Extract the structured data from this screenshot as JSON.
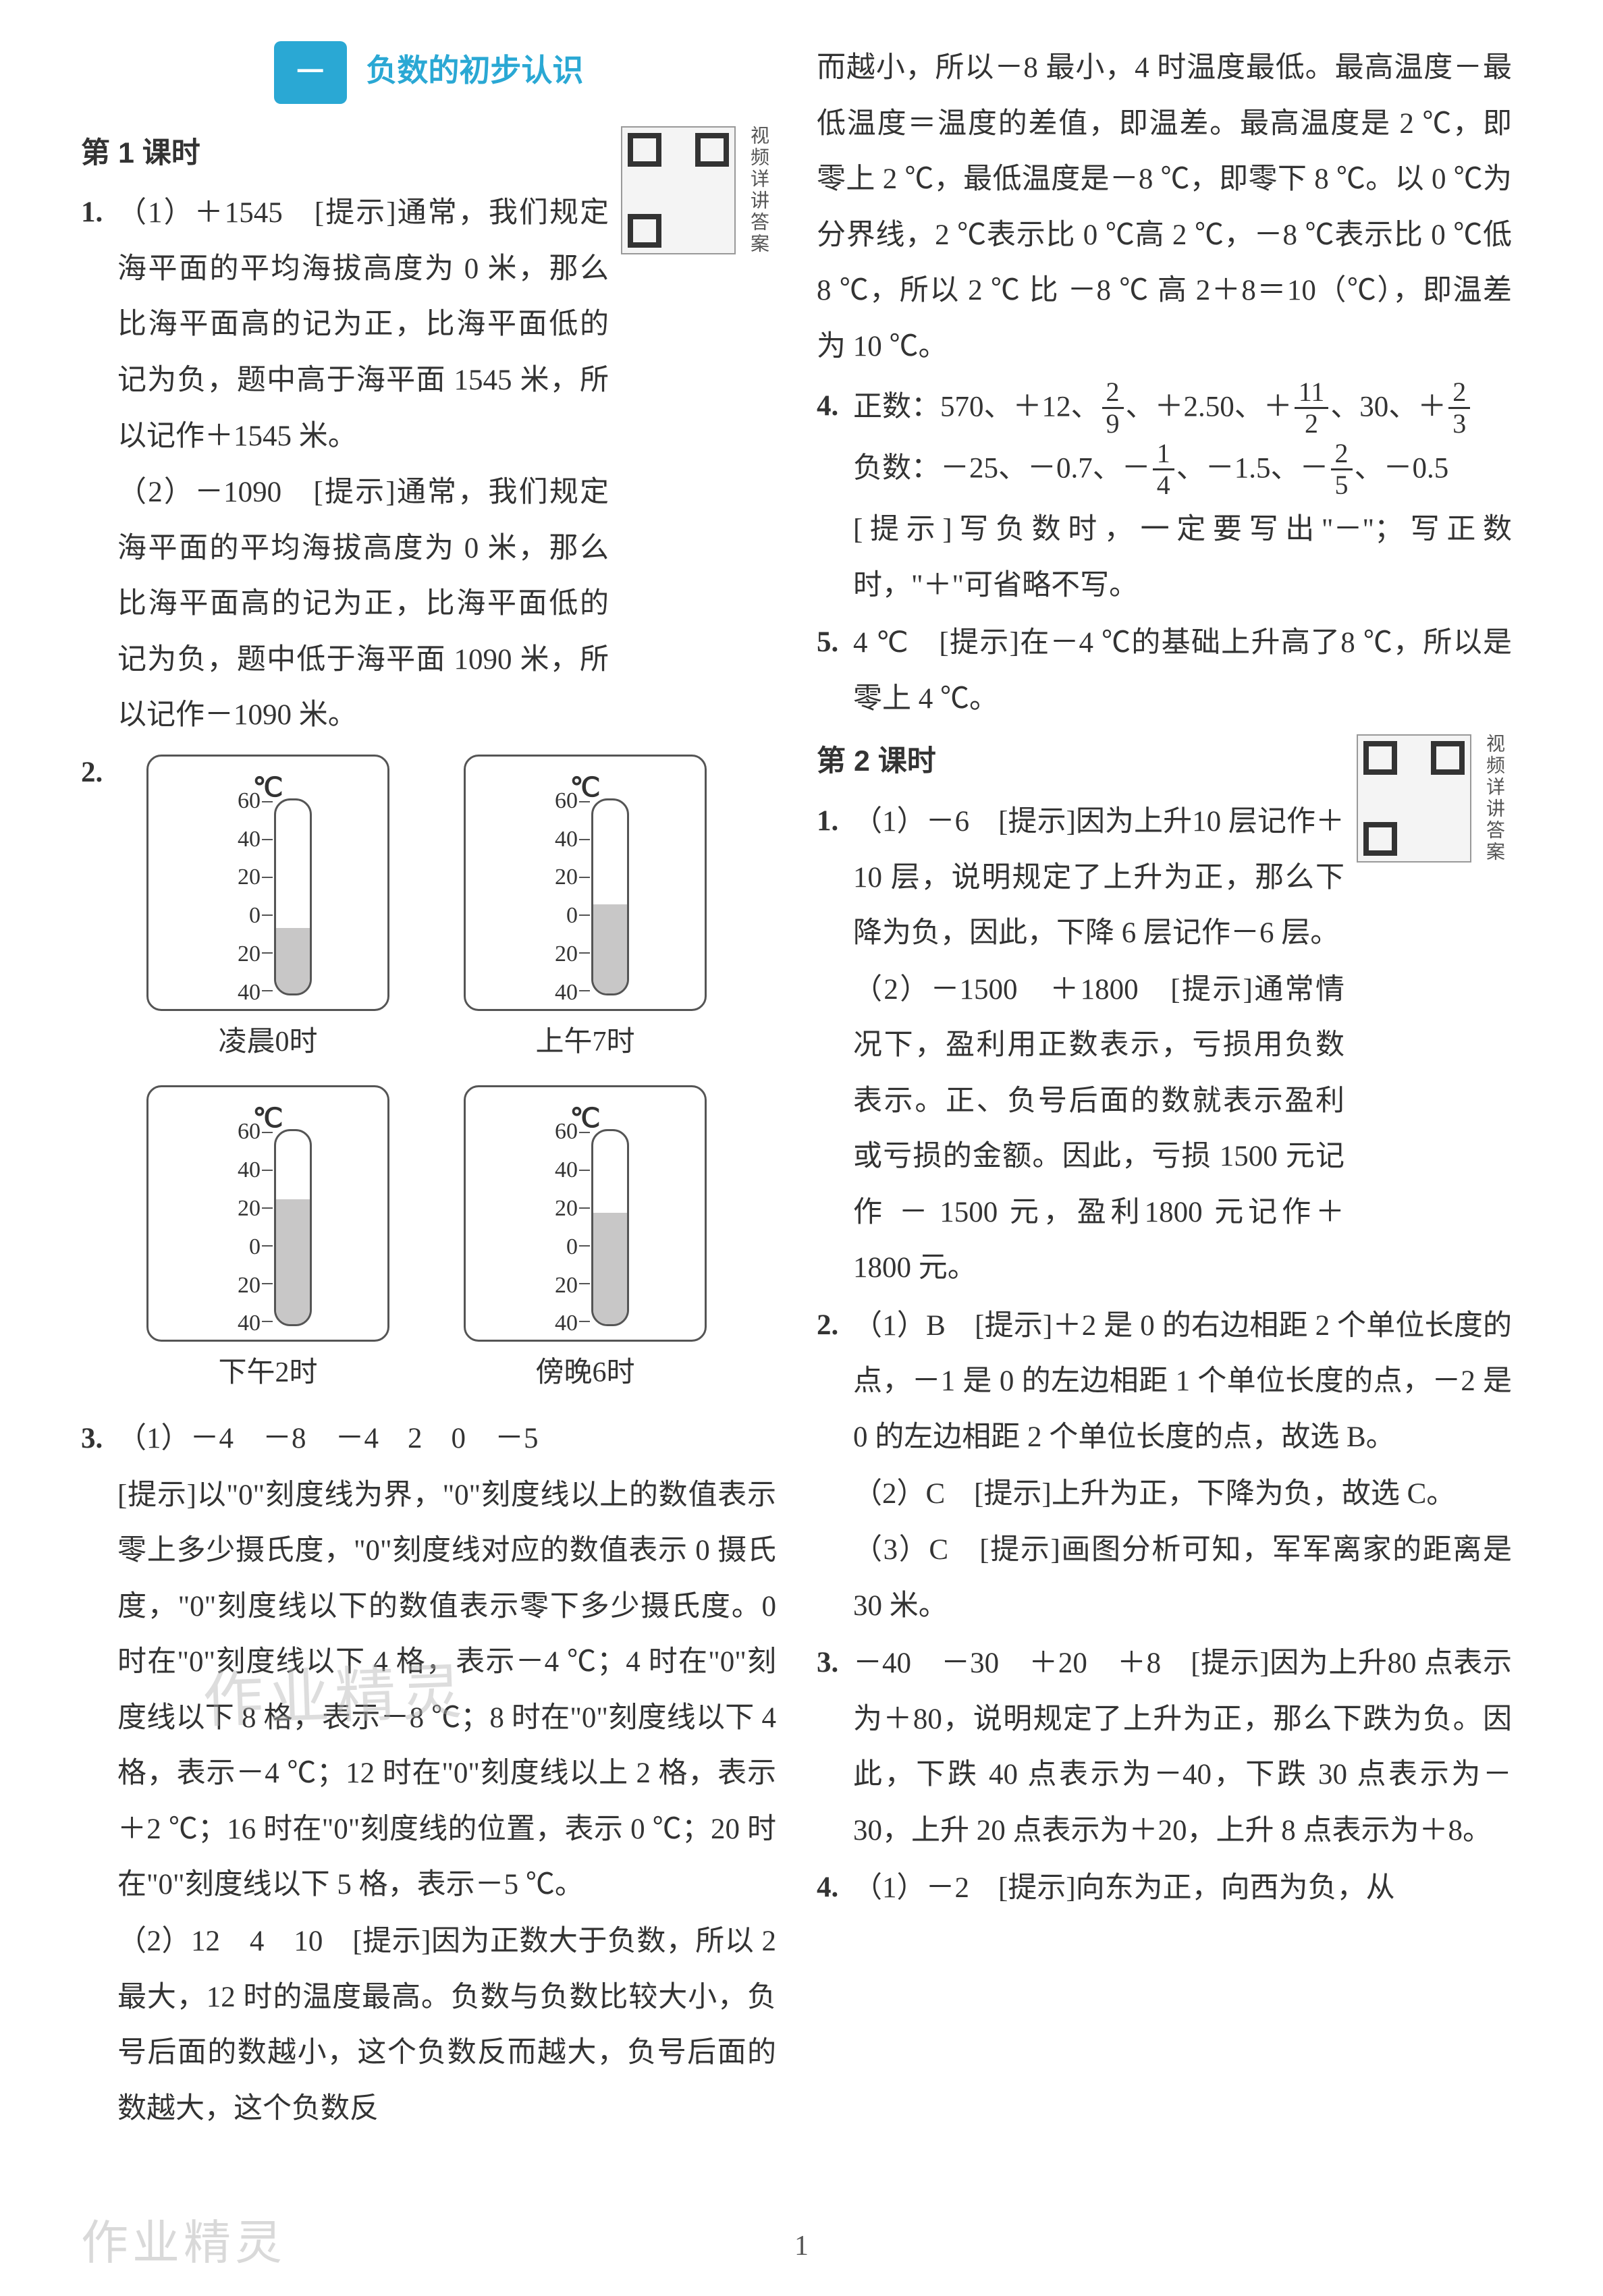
{
  "page_number": "1",
  "watermark_bottom": "作业精灵",
  "watermark_mid": "作业精灵",
  "colors": {
    "accent": "#2aa8d4",
    "text": "#333333",
    "thermo_fill": "#c8c7c7",
    "border": "#555555",
    "bg": "#ffffff"
  },
  "section": {
    "badge": "一",
    "title": "负数的初步认识"
  },
  "left": {
    "lesson1_heading": "第 1 课时",
    "qr1_label": "视频详讲答案",
    "item1_num": "1.",
    "item1_p1": "（1）＋1545　[",
    "item1_hint1": "提示",
    "item1_p1b": "]通常，我们规定海平面的平均海拔高度为 0 米，那么比海平面高的记为正，比海平面低的记为负，题中高于海平面 1545 米，所以记作＋1545 米。",
    "item1_p2": "（2）－1090　[",
    "item1_hint2": "提示",
    "item1_p2b": "]通常，我们规定海平面的平均海拔高度为 0 米，那么比海平面高的记为正，比海平面低的记为负，题中低于海平面 1090 米，所以记作－1090 米。",
    "item2_num": "2.",
    "thermos": {
      "unit": "℃",
      "scale": [
        "60",
        "40",
        "20",
        "0",
        "20",
        "40"
      ],
      "cells": [
        {
          "caption": "凌晨0时",
          "fill_percent": 34
        },
        {
          "caption": "上午7时",
          "fill_percent": 46
        },
        {
          "caption": "下午2时",
          "fill_percent": 65
        },
        {
          "caption": "傍晚6时",
          "fill_percent": 58
        }
      ]
    },
    "item3_num": "3.",
    "item3_p1": "（1）－4　－8　－4　2　0　－5",
    "item3_p2a": "[",
    "item3_hint1": "提示",
    "item3_p2b": "]以\"0\"刻度线为界，\"0\"刻度线以上的数值表示零上多少摄氏度，\"0\"刻度线对应的数值表示 0 摄氏度，\"0\"刻度线以下的数值表示零下多少摄氏度。0 时在\"0\"刻度线以下 4 格，表示－4 ℃；4 时在\"0\"刻度线以下 8 格，表示－8 ℃；8 时在\"0\"刻度线以下 4 格，表示－4 ℃；12 时在\"0\"刻度线以上 2 格，表示＋2 ℃；16 时在\"0\"刻度线的位置，表示 0 ℃；20 时在\"0\"刻度线以下 5 格，表示－5 ℃。",
    "item3_p3a": "（2）12　4　10　[",
    "item3_hint2": "提示",
    "item3_p3b": "]因为正数大于负数，所以 2 最大，12 时的温度最高。负数与负数比较大小，负号后面的数越小，这个负数反而越大，负号后面的数越大，这个负数反"
  },
  "right": {
    "cont3": "而越小，所以－8 最小，4 时温度最低。最高温度－最低温度＝温度的差值，即温差。最高温度是 2 ℃，即零上 2 ℃，最低温度是－8 ℃，即零下 8 ℃。以 0 ℃为分界线，2 ℃表示比 0 ℃高 2 ℃，－8 ℃表示比 0 ℃低 8 ℃，所以 2 ℃ 比 －8 ℃ 高 2＋8＝10（℃），即温差为 10 ℃。",
    "item4_num": "4.",
    "item4_label_pos": "正数：570、＋12、",
    "item4_f1n": "2",
    "item4_f1d": "9",
    "item4_pos_mid": "、＋2.50、＋",
    "item4_f2n": "11",
    "item4_f2d": "2",
    "item4_pos_mid2": "、30、＋",
    "item4_f3n": "2",
    "item4_f3d": "3",
    "item4_label_neg": "负数：－25、－0.7、－",
    "item4_f4n": "1",
    "item4_f4d": "4",
    "item4_neg_mid": "、－1.5、－",
    "item4_f5n": "2",
    "item4_f5d": "5",
    "item4_neg_tail": "、－0.5",
    "item4_p2a": "[",
    "item4_hint": "提示",
    "item4_p2b": "]写负数时，一定要写出\"－\"；写正数时，\"＋\"可省略不写。",
    "item5_num": "5.",
    "item5_p1a": "4 ℃　[",
    "item5_hint": "提示",
    "item5_p1b": "]在－4 ℃的基础上升高了8 ℃，所以是零上 4 ℃。",
    "lesson2_heading": "第 2 课时",
    "qr2_label": "视频详讲答案",
    "r1_num": "1.",
    "r1_p1a": "（1）－6　[",
    "r1_hint1": "提示",
    "r1_p1b": "]因为上升10 层记作＋10 层，说明规定了上升为正，那么下降为负，因此，下降 6 层记作－6 层。",
    "r1_p2a": "（2）－1500　＋1800　[",
    "r1_hint2": "提示",
    "r1_p2b": "]通常情况下，盈利用正数表示，亏损用负数表示。正、负号后面的数就表示盈利或亏损的金额。因此，亏损 1500 元记作 － 1500 元，盈利1800 元记作＋1800 元。",
    "r2_num": "2.",
    "r2_p1a": "（1）B　[",
    "r2_hint1": "提示",
    "r2_p1b": "]＋2 是 0 的右边相距 2 个单位长度的点，－1 是 0 的左边相距 1 个单位长度的点，－2 是 0 的左边相距 2 个单位长度的点，故选 B。",
    "r2_p2a": "（2）C　[",
    "r2_hint2": "提示",
    "r2_p2b": "]上升为正，下降为负，故选 C。",
    "r2_p3a": "（3）C　[",
    "r2_hint3": "提示",
    "r2_p3b": "]画图分析可知，军军离家的距离是 30 米。",
    "r3_num": "3.",
    "r3_p1a": "－40　－30　＋20　＋8　[",
    "r3_hint": "提示",
    "r3_p1b": "]因为上升80 点表示为＋80，说明规定了上升为正，那么下跌为负。因此，下跌 40 点表示为－40，下跌 30 点表示为－30，上升 20 点表示为＋20，上升 8 点表示为＋8。",
    "r4_num": "4.",
    "r4_p1a": "（1）－2　[",
    "r4_hint": "提示",
    "r4_p1b": "]向东为正，向西为负，从"
  }
}
